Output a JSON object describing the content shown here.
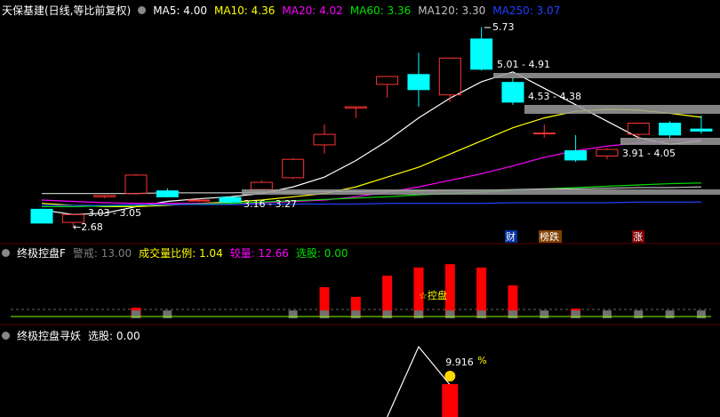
{
  "chart_data": [
    {
      "type": "candlestick",
      "title": "天保基建(日线,等比前复权)",
      "categories": [
        null,
        null,
        null,
        null,
        null,
        null,
        null,
        null,
        null,
        null,
        null,
        null,
        null,
        null,
        null,
        null,
        null,
        null,
        null,
        null,
        null,
        null
      ],
      "open": [
        2.96,
        2.76,
        3.15,
        3.2,
        3.24,
        3.09,
        3.14,
        3.26,
        3.44,
        3.94,
        4.5,
        4.86,
        5.01,
        4.7,
        5.55,
        4.89,
        4.11,
        3.85,
        3.77,
        4.1,
        4.27,
        4.18
      ],
      "high": [
        2.97,
        2.88,
        3.18,
        3.5,
        3.28,
        3.12,
        3.16,
        3.4,
        3.74,
        4.25,
        4.53,
        4.99,
        5.34,
        5.27,
        5.73,
        4.97,
        4.25,
        4.09,
        3.89,
        4.28,
        4.3,
        4.39
      ],
      "low": [
        2.75,
        2.68,
        3.13,
        3.18,
        3.14,
        3.07,
        3.05,
        3.25,
        3.42,
        3.81,
        4.35,
        4.66,
        4.52,
        4.59,
        5.07,
        4.55,
        4.05,
        3.68,
        3.72,
        4.0,
        4.03,
        4.11
      ],
      "close": [
        2.75,
        2.88,
        3.17,
        3.48,
        3.15,
        3.1,
        3.07,
        3.37,
        3.72,
        4.1,
        4.52,
        4.98,
        4.78,
        5.26,
        5.09,
        4.59,
        4.12,
        3.71,
        3.87,
        4.27,
        4.09,
        4.15
      ],
      "up_color": "#ff3232",
      "down_color": "#00ffff",
      "ylim": [
        2.6,
        5.9
      ],
      "series": [
        {
          "name": "MA5: 4.00",
          "color": "#ffffff",
          "values": [
            2.95,
            2.88,
            2.9,
            3.0,
            3.08,
            3.12,
            3.15,
            3.2,
            3.3,
            3.45,
            3.7,
            4.0,
            4.35,
            4.65,
            4.9,
            5.05,
            4.8,
            4.55,
            4.3,
            4.05,
            3.95,
            4.0
          ]
        },
        {
          "name": "MA10: 4.36",
          "color": "#ffff00",
          "values": [
            3.05,
            3.02,
            3.0,
            3.0,
            3.02,
            3.05,
            3.07,
            3.1,
            3.15,
            3.2,
            3.3,
            3.45,
            3.6,
            3.8,
            4.0,
            4.2,
            4.35,
            4.45,
            4.48,
            4.47,
            4.42,
            4.36
          ]
        },
        {
          "name": "MA20: 4.02",
          "color": "#ff00ff",
          "values": [
            3.1,
            3.08,
            3.06,
            3.05,
            3.05,
            3.05,
            3.05,
            3.06,
            3.08,
            3.1,
            3.15,
            3.22,
            3.3,
            3.4,
            3.5,
            3.62,
            3.75,
            3.85,
            3.92,
            3.97,
            4.0,
            4.02
          ]
        },
        {
          "name": "MA60: 3.36",
          "color": "#00e000",
          "values": [
            3.0,
            3.0,
            3.01,
            3.02,
            3.03,
            3.04,
            3.05,
            3.07,
            3.09,
            3.11,
            3.13,
            3.15,
            3.18,
            3.2,
            3.22,
            3.25,
            3.27,
            3.29,
            3.31,
            3.33,
            3.35,
            3.36
          ]
        },
        {
          "name": "MA120: 3.30",
          "color": "#c0c0c0",
          "values": [
            3.2,
            3.2,
            3.2,
            3.2,
            3.21,
            3.21,
            3.21,
            3.22,
            3.22,
            3.23,
            3.23,
            3.24,
            3.24,
            3.25,
            3.25,
            3.26,
            3.27,
            3.27,
            3.28,
            3.29,
            3.29,
            3.3
          ]
        },
        {
          "name": "MA250: 3.07",
          "color": "#2040ff",
          "values": [
            3.02,
            3.02,
            3.02,
            3.03,
            3.03,
            3.03,
            3.03,
            3.04,
            3.04,
            3.04,
            3.04,
            3.05,
            3.05,
            3.05,
            3.05,
            3.06,
            3.06,
            3.06,
            3.06,
            3.07,
            3.07,
            3.07
          ]
        }
      ],
      "annotations": [
        "5.73",
        "5.01 - 4.91",
        "4.53 - 4.38",
        "3.91 - 4.05",
        "3.03 - 3.05",
        "←2.68",
        "3.16 - 3.27"
      ],
      "markers": [
        "财",
        "榜跌",
        "涨"
      ]
    },
    {
      "type": "bar",
      "title": "终极控盘F",
      "indicators": [
        {
          "text": "警戒: 13.00",
          "color": "#808080"
        },
        {
          "text": "成交量比例: 1.04",
          "color": "#ffff00"
        },
        {
          "text": "较量: 12.66",
          "color": "#ff00ff"
        },
        {
          "text": "选股: 0.00",
          "color": "#00e000"
        }
      ],
      "annotation": "☆控盘",
      "categories": [
        null,
        null,
        null,
        null,
        null,
        null,
        null,
        null,
        null,
        null,
        null,
        null,
        null,
        null,
        null,
        null,
        null,
        null,
        null,
        null,
        null,
        null
      ],
      "ylim": [
        0,
        20
      ],
      "series": [
        {
          "color": "#ff0000",
          "values": [
            null,
            null,
            null,
            3.5,
            null,
            null,
            null,
            null,
            null,
            10.3,
            7.1,
            14.1,
            16.8,
            17.9,
            16.8,
            10.9,
            null,
            3.2,
            null,
            null,
            null,
            null
          ]
        },
        {
          "color": "#707070",
          "values": [
            null,
            null,
            null,
            2.6,
            2.6,
            null,
            null,
            null,
            2.6,
            2.6,
            2.6,
            2.6,
            2.6,
            2.6,
            2.6,
            2.6,
            2.6,
            2.6,
            2.6,
            2.6,
            2.6,
            2.6
          ]
        }
      ]
    },
    {
      "type": "line",
      "title": "终极控盘寻妖",
      "indicators": [
        {
          "text": "选股: 0.00",
          "color": "#ffffff"
        }
      ],
      "categories": [
        null,
        null,
        null,
        null,
        null,
        null,
        null,
        null,
        null,
        null,
        null,
        null,
        null,
        null,
        null,
        null,
        null,
        null,
        null,
        null,
        null,
        null
      ],
      "ylim": [
        0,
        10
      ],
      "series": [
        {
          "color": "#ffffff",
          "values": [
            null,
            null,
            null,
            null,
            null,
            null,
            null,
            null,
            null,
            null,
            null,
            0,
            9.4,
            4.3,
            null,
            null,
            null,
            null,
            null,
            null,
            null,
            null
          ]
        },
        {
          "color": "#ff0000",
          "bar": true,
          "values": [
            null,
            null,
            null,
            null,
            null,
            null,
            null,
            null,
            null,
            null,
            null,
            null,
            null,
            4.4,
            null,
            null,
            null,
            null,
            null,
            null,
            null,
            null
          ]
        }
      ],
      "value_label": "9.916",
      "unit": "%"
    }
  ]
}
